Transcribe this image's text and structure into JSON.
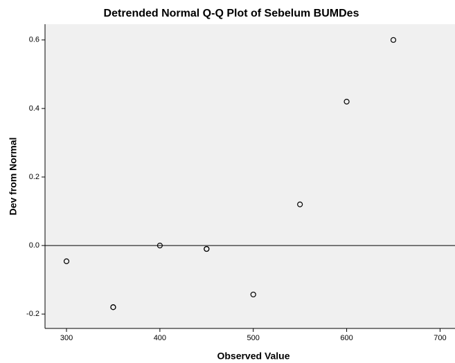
{
  "chart_data": {
    "type": "scatter",
    "title": "Detrended Normal Q-Q Plot of Sebelum BUMDes",
    "x_label": "Observed Value",
    "y_label": "Dev from Normal",
    "x": [
      300,
      350,
      350,
      400,
      450,
      450,
      500,
      550,
      600,
      650
    ],
    "values": [
      -0.046,
      -0.18,
      -0.18,
      0.0,
      -0.01,
      -0.01,
      -0.143,
      0.12,
      0.42,
      0.6
    ],
    "color": "#000000",
    "reference_line": 0,
    "xlim": [
      277,
      716
    ],
    "xticks": [
      300,
      400,
      500,
      600,
      700
    ],
    "ylim": [
      -0.242,
      0.646
    ],
    "yticks": [
      0.6,
      0.4,
      0.2,
      {
        "value": 0,
        "label": "0.0"
      },
      -0.2
    ]
  }
}
